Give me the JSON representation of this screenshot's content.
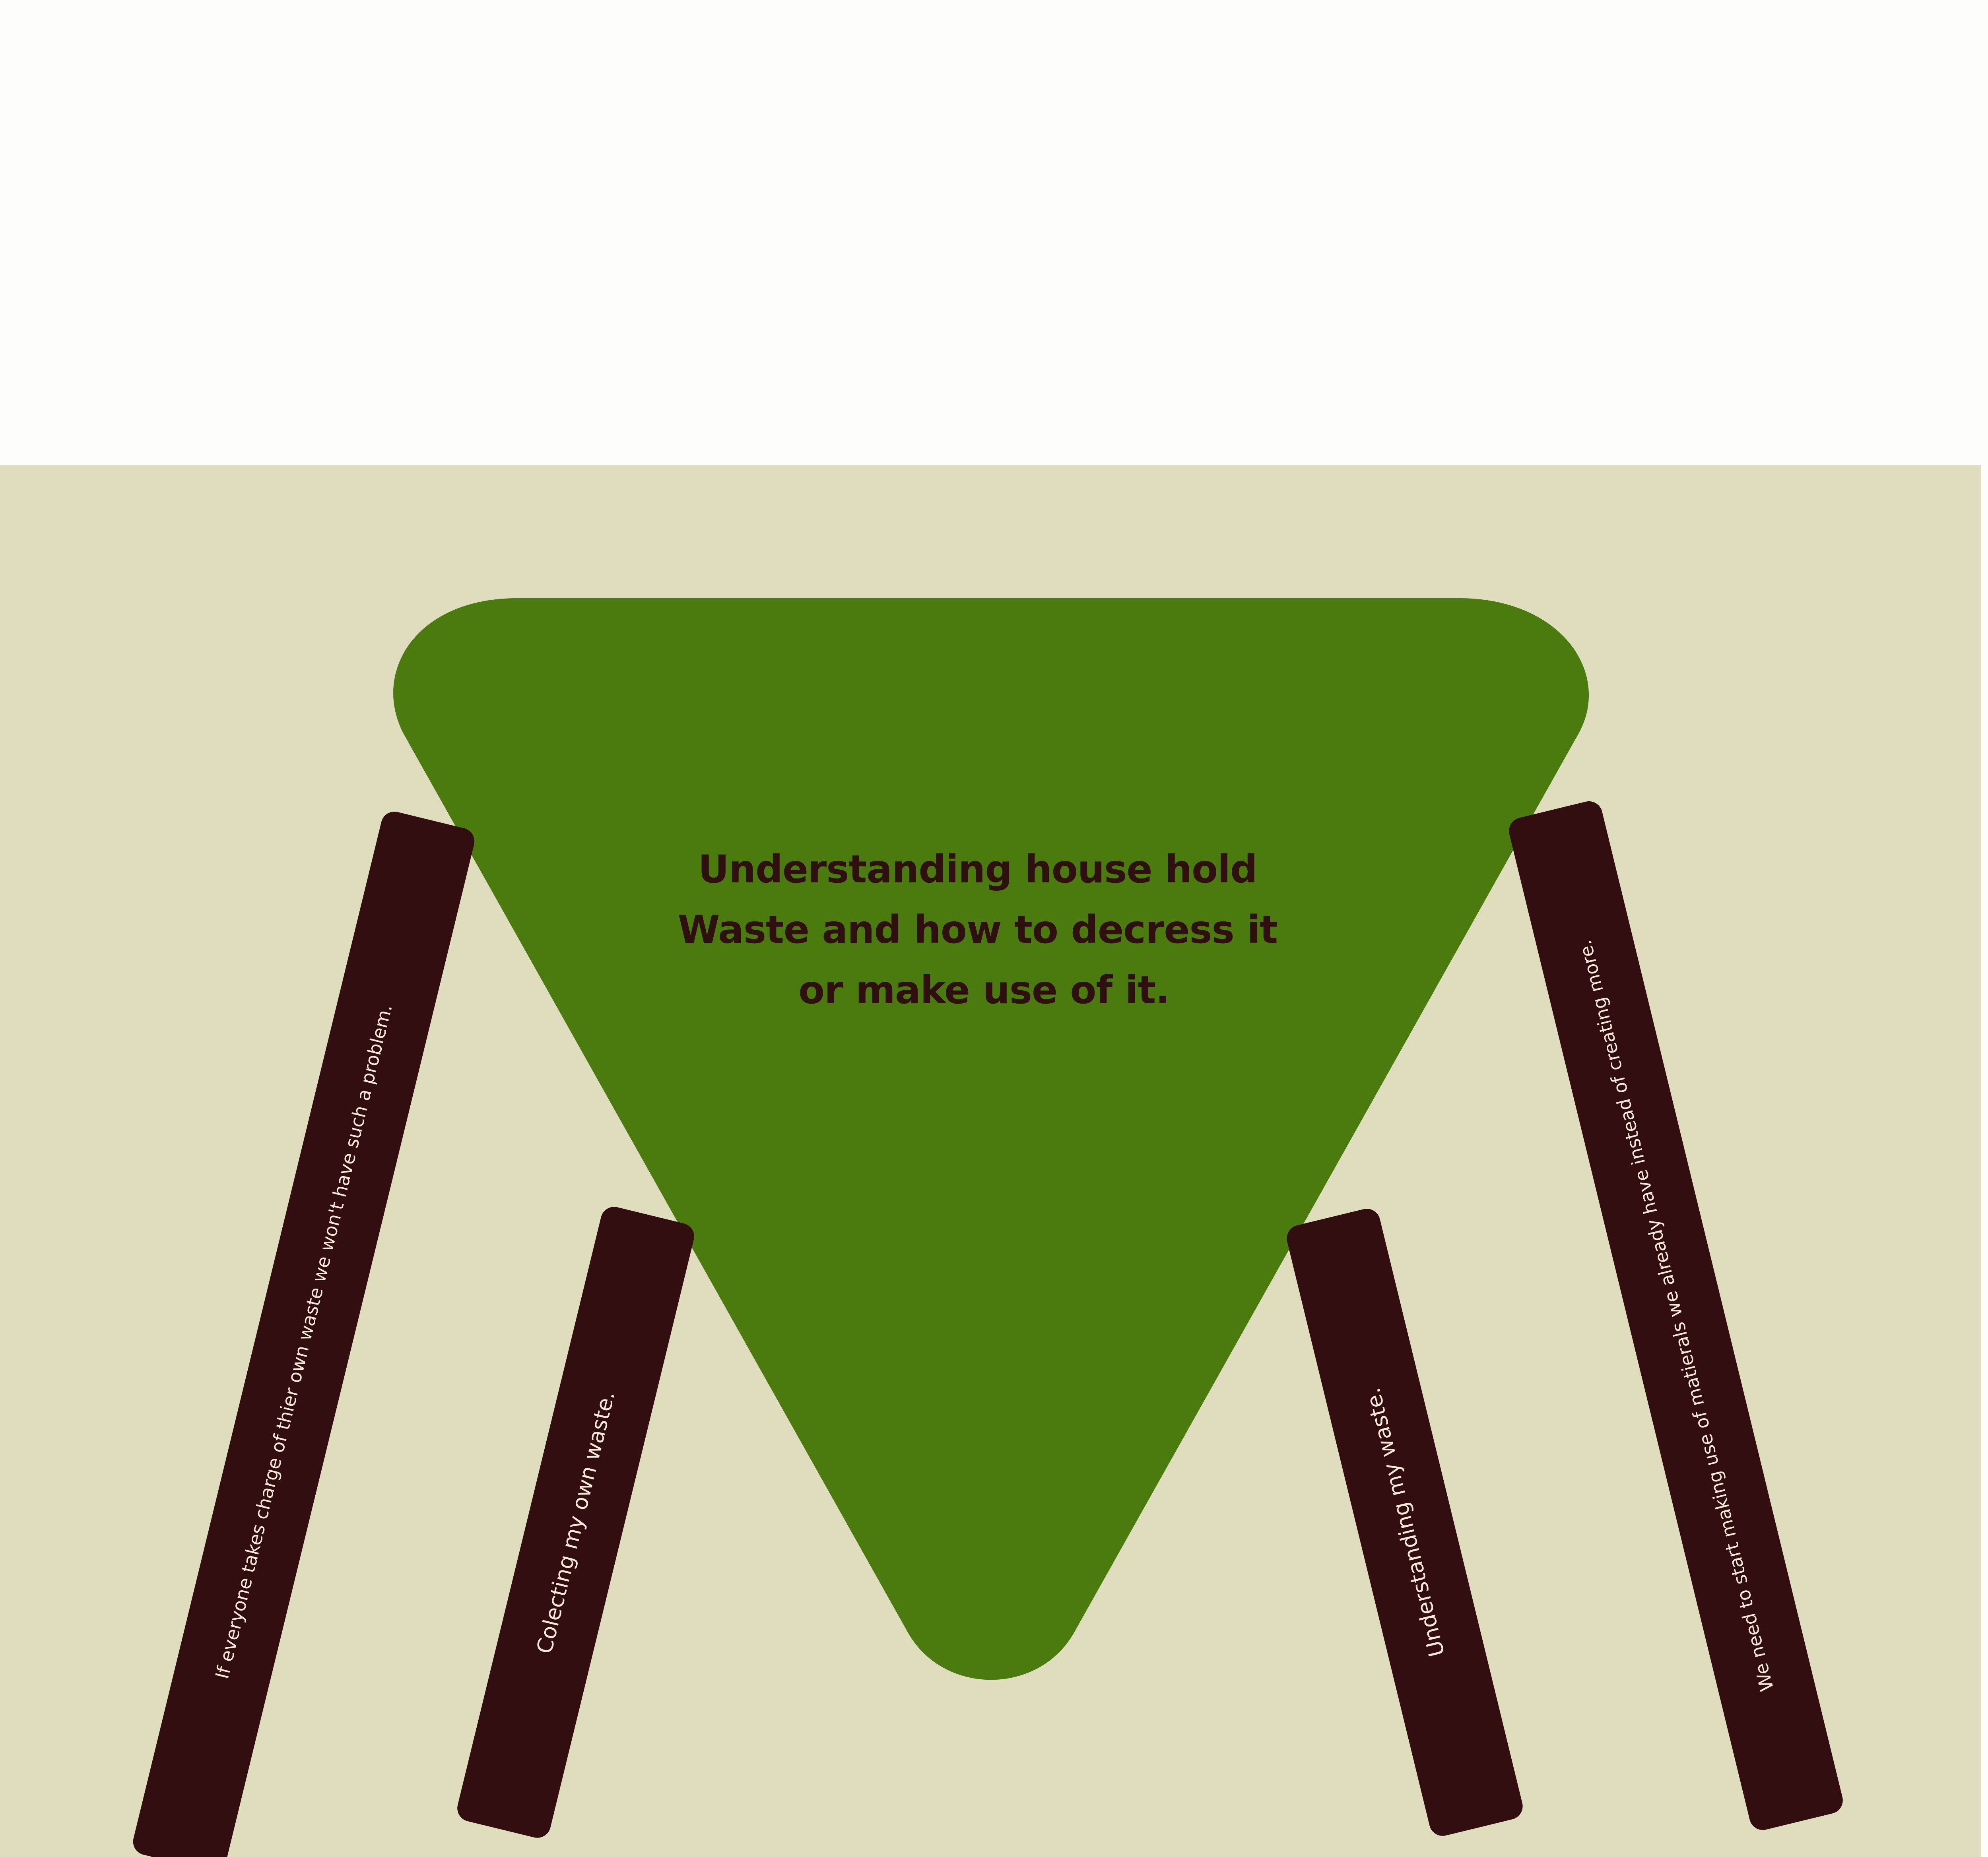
{
  "colors": {
    "page_background": "#fdfdfc",
    "panel_background": "#e0ddbf",
    "triangle_fill": "#4b7a0e",
    "title_text": "#2f0f0f",
    "bar_fill": "#330e10",
    "bar_text": "#f3e9d8"
  },
  "title": {
    "line1": "Understanding house hold",
    "line2": "Waste and how to decress it",
    "line3": "or make use of it."
  },
  "bars": {
    "left_outer": "If everyone takes charge of thier own waste we won't have such a problem.",
    "left_inner": "Colecting my own waste.",
    "right_inner": "Understanding my waste.",
    "right_outer": "We need to start making use of matierals we already have instead of creating more."
  }
}
